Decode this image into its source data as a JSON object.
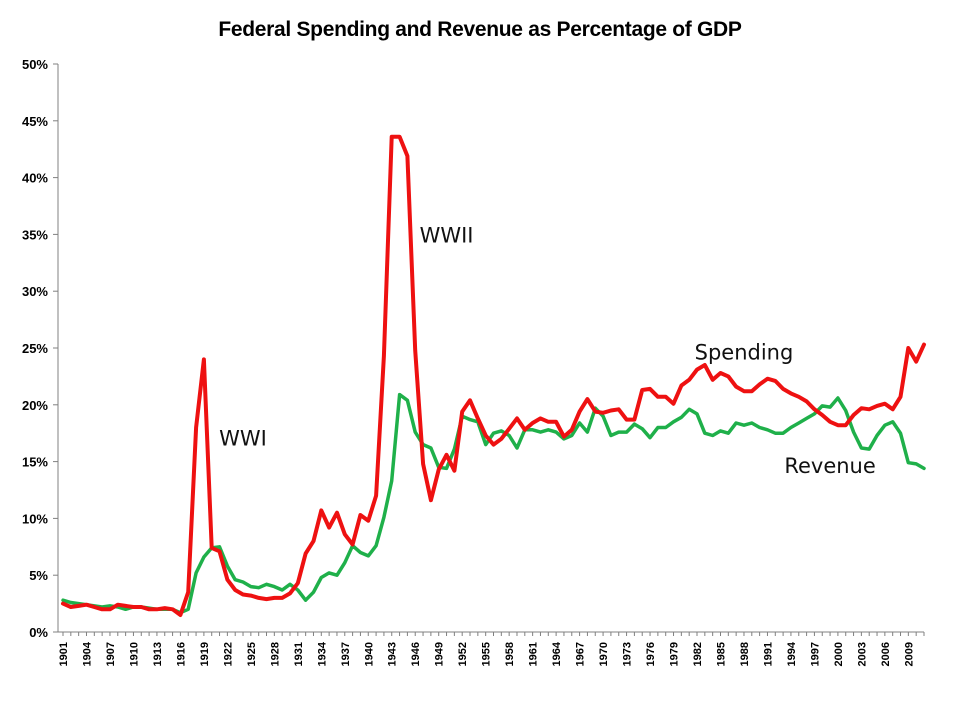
{
  "chart_data": {
    "type": "line",
    "title": "Federal Spending and Revenue as Percentage of GDP",
    "xlabel": "",
    "ylabel": "",
    "x": [
      1901,
      1902,
      1903,
      1904,
      1905,
      1906,
      1907,
      1908,
      1909,
      1910,
      1911,
      1912,
      1913,
      1914,
      1915,
      1916,
      1917,
      1918,
      1919,
      1920,
      1921,
      1922,
      1923,
      1924,
      1925,
      1926,
      1927,
      1928,
      1929,
      1930,
      1931,
      1932,
      1933,
      1934,
      1935,
      1936,
      1937,
      1938,
      1939,
      1940,
      1941,
      1942,
      1943,
      1944,
      1945,
      1946,
      1947,
      1948,
      1949,
      1950,
      1951,
      1952,
      1953,
      1954,
      1955,
      1956,
      1957,
      1958,
      1959,
      1960,
      1961,
      1962,
      1963,
      1964,
      1965,
      1966,
      1967,
      1968,
      1969,
      1970,
      1971,
      1972,
      1973,
      1974,
      1975,
      1976,
      1977,
      1978,
      1979,
      1980,
      1981,
      1982,
      1983,
      1984,
      1985,
      1986,
      1987,
      1988,
      1989,
      1990,
      1991,
      1992,
      1993,
      1994,
      1995,
      1996,
      1997,
      1998,
      1999,
      2000,
      2001,
      2002,
      2003,
      2004,
      2005,
      2006,
      2007,
      2008,
      2009,
      2010,
      2011
    ],
    "x_tick_labels": [
      "1901",
      "1904",
      "1907",
      "1910",
      "1913",
      "1916",
      "1919",
      "1922",
      "1925",
      "1928",
      "1931",
      "1934",
      "1937",
      "1940",
      "1943",
      "1946",
      "1949",
      "1952",
      "1955",
      "1958",
      "1961",
      "1964",
      "1967",
      "1970",
      "1973",
      "1976",
      "1979",
      "1982",
      "1985",
      "1988",
      "1991",
      "1994",
      "1997",
      "2000",
      "2003",
      "2006",
      "2009"
    ],
    "y_tick_labels": [
      "0%",
      "5%",
      "10%",
      "15%",
      "20%",
      "25%",
      "30%",
      "35%",
      "40%",
      "45%",
      "50%"
    ],
    "ylim": [
      0,
      50
    ],
    "grid": false,
    "legend": "none",
    "series": [
      {
        "name": "Spending",
        "color": "#ee1111",
        "values": [
          2.5,
          2.2,
          2.3,
          2.4,
          2.2,
          2.0,
          2.0,
          2.4,
          2.3,
          2.2,
          2.2,
          2.0,
          2.0,
          2.1,
          2.0,
          1.5,
          3.5,
          18.0,
          24.0,
          7.4,
          7.1,
          4.6,
          3.7,
          3.3,
          3.2,
          3.0,
          2.9,
          3.0,
          3.0,
          3.4,
          4.3,
          6.9,
          8.0,
          10.7,
          9.2,
          10.5,
          8.6,
          7.7,
          10.3,
          9.8,
          12.0,
          24.3,
          43.6,
          43.6,
          41.9,
          24.8,
          14.8,
          11.6,
          14.3,
          15.6,
          14.2,
          19.4,
          20.4,
          18.8,
          17.3,
          16.5,
          17.0,
          17.9,
          18.8,
          17.8,
          18.4,
          18.8,
          18.5,
          18.5,
          17.2,
          17.8,
          19.4,
          20.5,
          19.4,
          19.3,
          19.5,
          19.6,
          18.7,
          18.7,
          21.3,
          21.4,
          20.7,
          20.7,
          20.1,
          21.7,
          22.2,
          23.1,
          23.5,
          22.2,
          22.8,
          22.5,
          21.6,
          21.2,
          21.2,
          21.8,
          22.3,
          22.1,
          21.4,
          21.0,
          20.7,
          20.3,
          19.6,
          19.1,
          18.5,
          18.2,
          18.2,
          19.1,
          19.7,
          19.6,
          19.9,
          20.1,
          19.6,
          20.7,
          25.0,
          23.8,
          25.3
        ]
      },
      {
        "name": "Revenue",
        "color": "#1fb04a",
        "values": [
          2.8,
          2.6,
          2.5,
          2.4,
          2.3,
          2.2,
          2.3,
          2.2,
          2.0,
          2.2,
          2.2,
          2.1,
          2.0,
          2.0,
          2.0,
          1.7,
          2.0,
          5.2,
          6.6,
          7.4,
          7.5,
          5.8,
          4.6,
          4.4,
          4.0,
          3.9,
          4.2,
          4.0,
          3.7,
          4.2,
          3.7,
          2.8,
          3.5,
          4.8,
          5.2,
          5.0,
          6.1,
          7.6,
          7.0,
          6.7,
          7.6,
          10.1,
          13.3,
          20.9,
          20.4,
          17.6,
          16.5,
          16.2,
          14.5,
          14.4,
          16.1,
          19.0,
          18.7,
          18.5,
          16.5,
          17.5,
          17.7,
          17.3,
          16.2,
          17.8,
          17.8,
          17.6,
          17.8,
          17.6,
          17.0,
          17.3,
          18.4,
          17.6,
          19.7,
          19.0,
          17.3,
          17.6,
          17.6,
          18.3,
          17.9,
          17.1,
          18.0,
          18.0,
          18.5,
          18.9,
          19.6,
          19.2,
          17.5,
          17.3,
          17.7,
          17.5,
          18.4,
          18.2,
          18.4,
          18.0,
          17.8,
          17.5,
          17.5,
          18.0,
          18.4,
          18.8,
          19.2,
          19.9,
          19.8,
          20.6,
          19.5,
          17.6,
          16.2,
          16.1,
          17.3,
          18.2,
          18.5,
          17.5,
          14.9,
          14.8,
          14.4
        ]
      }
    ],
    "annotations": [
      {
        "text": "WWI",
        "x": 1924,
        "y": 16.4
      },
      {
        "text": "WWII",
        "x": 1950,
        "y": 34.3
      },
      {
        "text": "Spending",
        "x": 1988,
        "y": 24.0
      },
      {
        "text": "Revenue",
        "x": 1999,
        "y": 14.0
      }
    ]
  }
}
